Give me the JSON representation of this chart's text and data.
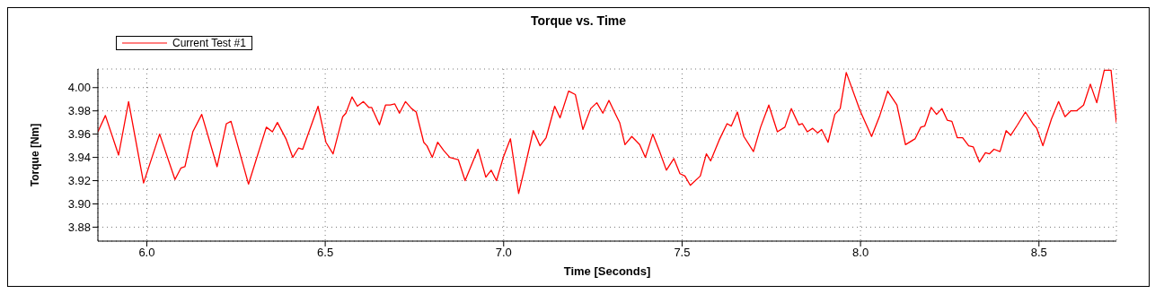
{
  "chart_data": {
    "type": "line",
    "title": "Torque vs. Time",
    "xlabel": "Time [Seconds]",
    "ylabel": "Torque [Nm]",
    "x": [
      5.863,
      5.884,
      5.921,
      5.949,
      5.991,
      6.036,
      6.079,
      6.096,
      6.107,
      6.129,
      6.154,
      6.197,
      6.223,
      6.236,
      6.285,
      6.335,
      6.352,
      6.366,
      6.39,
      6.409,
      6.425,
      6.437,
      6.48,
      6.502,
      6.522,
      6.549,
      6.558,
      6.575,
      6.59,
      6.607,
      6.622,
      6.63,
      6.652,
      6.669,
      6.682,
      6.695,
      6.708,
      6.725,
      6.742,
      6.755,
      6.776,
      6.785,
      6.8,
      6.815,
      6.832,
      6.849,
      6.873,
      6.892,
      6.928,
      6.95,
      6.965,
      6.98,
      6.999,
      7.019,
      7.042,
      7.059,
      7.083,
      7.102,
      7.119,
      7.143,
      7.158,
      7.182,
      7.201,
      7.222,
      7.244,
      7.261,
      7.278,
      7.295,
      7.312,
      7.325,
      7.34,
      7.359,
      7.381,
      7.397,
      7.418,
      7.437,
      7.456,
      7.477,
      7.494,
      7.508,
      7.523,
      7.551,
      7.568,
      7.58,
      7.604,
      7.626,
      7.638,
      7.655,
      7.673,
      7.7,
      7.72,
      7.743,
      7.767,
      7.788,
      7.806,
      7.827,
      7.837,
      7.851,
      7.866,
      7.88,
      7.891,
      7.909,
      7.928,
      7.943,
      7.96,
      7.999,
      8.031,
      8.054,
      8.076,
      8.102,
      8.126,
      8.153,
      8.169,
      8.18,
      8.198,
      8.213,
      8.228,
      8.243,
      8.256,
      8.271,
      8.286,
      8.303,
      8.316,
      8.333,
      8.35,
      8.361,
      8.374,
      8.391,
      8.408,
      8.421,
      8.44,
      8.462,
      8.483,
      8.494,
      8.511,
      8.535,
      8.555,
      8.573,
      8.589,
      8.605,
      8.625,
      8.644,
      8.662,
      8.683,
      8.702,
      8.717
    ],
    "series": [
      {
        "name": "Current Test #1",
        "color": "#ff0000",
        "values": [
          3.962,
          3.976,
          3.942,
          3.988,
          3.918,
          3.96,
          3.921,
          3.931,
          3.932,
          3.962,
          3.977,
          3.932,
          3.969,
          3.971,
          3.917,
          3.966,
          3.962,
          3.97,
          3.956,
          3.94,
          3.948,
          3.947,
          3.984,
          3.953,
          3.943,
          3.975,
          3.978,
          3.992,
          3.984,
          3.988,
          3.983,
          3.983,
          3.968,
          3.985,
          3.985,
          3.986,
          3.978,
          3.988,
          3.982,
          3.979,
          3.953,
          3.95,
          3.94,
          3.953,
          3.946,
          3.94,
          3.938,
          3.92,
          3.947,
          3.923,
          3.929,
          3.92,
          3.94,
          3.956,
          3.909,
          3.931,
          3.963,
          3.95,
          3.957,
          3.984,
          3.974,
          3.997,
          3.994,
          3.964,
          3.982,
          3.987,
          3.978,
          3.989,
          3.978,
          3.97,
          3.951,
          3.958,
          3.951,
          3.94,
          3.96,
          3.945,
          3.929,
          3.939,
          3.926,
          3.924,
          3.916,
          3.924,
          3.943,
          3.937,
          3.955,
          3.969,
          3.967,
          3.979,
          3.958,
          3.945,
          3.966,
          3.985,
          3.962,
          3.966,
          3.982,
          3.968,
          3.969,
          3.962,
          3.965,
          3.961,
          3.964,
          3.953,
          3.977,
          3.982,
          4.013,
          3.98,
          3.958,
          3.976,
          3.997,
          3.985,
          3.951,
          3.956,
          3.966,
          3.967,
          3.983,
          3.977,
          3.982,
          3.972,
          3.971,
          3.957,
          3.957,
          3.95,
          3.949,
          3.936,
          3.944,
          3.943,
          3.947,
          3.945,
          3.963,
          3.959,
          3.968,
          3.979,
          3.969,
          3.965,
          3.95,
          3.973,
          3.988,
          3.975,
          3.98,
          3.98,
          3.985,
          4.003,
          3.987,
          4.015,
          4.015,
          3.97
        ]
      }
    ],
    "xlim": [
      5.863,
      8.717
    ],
    "xticks": [
      {
        "value": 6,
        "label": "6.0"
      },
      6.5,
      {
        "value": 7,
        "label": "7.0"
      },
      7.5,
      {
        "value": 8,
        "label": "8.0"
      },
      8.5
    ],
    "ylim": [
      3.868,
      4.016
    ],
    "yticks": [
      {
        "value": 3.88,
        "label": "3.88"
      },
      {
        "value": 3.9,
        "label": "3.90"
      },
      {
        "value": 3.92,
        "label": "3.92"
      },
      {
        "value": 3.94,
        "label": "3.94"
      },
      {
        "value": 3.96,
        "label": "3.96"
      },
      {
        "value": 3.98,
        "label": "3.98"
      },
      {
        "value": 4,
        "label": "4.00"
      }
    ],
    "grid": true,
    "legend": "top left"
  }
}
